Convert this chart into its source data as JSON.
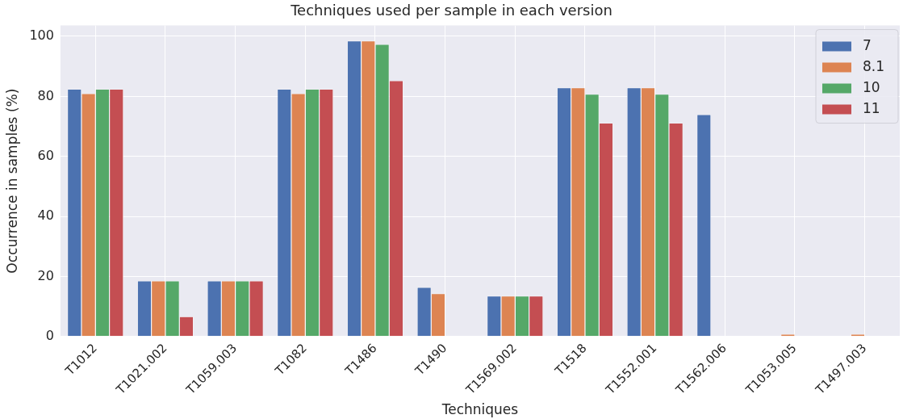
{
  "chart_data": {
    "type": "bar",
    "title": "Techniques used per sample in each version",
    "xlabel": "Techniques",
    "ylabel": "Occurrence in samples (%)",
    "categories": [
      "T1012",
      "T1021.002",
      "T1059.003",
      "T1082",
      "T1486",
      "T1490",
      "T1569.002",
      "T1518",
      "T1552.001",
      "T1562.006",
      "T1053.005",
      "T1497.003"
    ],
    "series": [
      {
        "name": "7",
        "color": "#4c72b0",
        "values": [
          82.4,
          18.5,
          18.5,
          82.4,
          98.5,
          16.4,
          13.5,
          82.9,
          82.9,
          73.9,
          0,
          0
        ]
      },
      {
        "name": "8.1",
        "color": "#dd8452",
        "values": [
          80.9,
          18.5,
          18.5,
          80.9,
          98.5,
          14.3,
          13.5,
          82.9,
          82.9,
          0,
          0.8,
          0.8
        ]
      },
      {
        "name": "10",
        "color": "#55a868",
        "values": [
          82.4,
          18.5,
          18.5,
          82.4,
          97.3,
          0,
          13.5,
          80.7,
          80.7,
          0,
          0,
          0
        ]
      },
      {
        "name": "11",
        "color": "#c44e52",
        "values": [
          82.4,
          6.6,
          18.5,
          82.4,
          85.2,
          0,
          13.5,
          71.1,
          71.1,
          0,
          0,
          0
        ]
      }
    ],
    "ylim": [
      0,
      103.6
    ],
    "yticks": [
      0,
      20,
      40,
      60,
      80,
      100
    ],
    "grid": true,
    "legend": "top right"
  }
}
